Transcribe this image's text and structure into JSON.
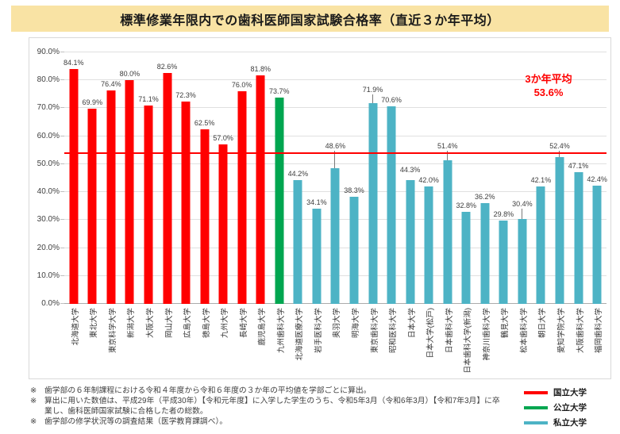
{
  "chart_data": {
    "type": "bar",
    "title": "標準修業年限内での歯科医師国家試験合格率（直近３か年平均）",
    "xlabel": "",
    "ylabel": "",
    "ylim": [
      0,
      90
    ],
    "ytick_step": 10,
    "ytick_labels": [
      "0.0%",
      "10.0%",
      "20.0%",
      "30.0%",
      "40.0%",
      "50.0%",
      "60.0%",
      "70.0%",
      "80.0%",
      "90.0%"
    ],
    "grid": "horizontal",
    "legend_position": "bottom-right",
    "average_line": {
      "value": 53.6,
      "label_line1": "3か年平均",
      "label_line2": "53.6%",
      "color": "#FF0000"
    },
    "legend": [
      {
        "key": "national",
        "label": "国立大学",
        "color": "#FF0000"
      },
      {
        "key": "public",
        "label": "公立大学",
        "color": "#00A650"
      },
      {
        "key": "private",
        "label": "私立大学",
        "color": "#4DB3C5"
      }
    ],
    "bars": [
      {
        "label": "北海道大学",
        "value": 84.1,
        "group": "national"
      },
      {
        "label": "東北大学",
        "value": 69.9,
        "group": "national"
      },
      {
        "label": "東京科学大学",
        "value": 76.4,
        "group": "national"
      },
      {
        "label": "新潟大学",
        "value": 80.0,
        "group": "national"
      },
      {
        "label": "大阪大学",
        "value": 71.1,
        "group": "national"
      },
      {
        "label": "岡山大学",
        "value": 82.6,
        "group": "national"
      },
      {
        "label": "広島大学",
        "value": 72.3,
        "group": "national"
      },
      {
        "label": "徳島大学",
        "value": 62.5,
        "group": "national"
      },
      {
        "label": "九州大学",
        "value": 57.0,
        "group": "national"
      },
      {
        "label": "長崎大学",
        "value": 76.0,
        "group": "national"
      },
      {
        "label": "鹿児島大学",
        "value": 81.8,
        "group": "national"
      },
      {
        "label": "九州歯科大学",
        "value": 73.7,
        "group": "public"
      },
      {
        "label": "北海道医療大学",
        "value": 44.2,
        "group": "private"
      },
      {
        "label": "岩手医科大学",
        "value": 34.1,
        "group": "private"
      },
      {
        "label": "奥羽大学",
        "value": 48.6,
        "group": "private"
      },
      {
        "label": "明海大学",
        "value": 38.3,
        "group": "private"
      },
      {
        "label": "東京歯科大学",
        "value": 71.9,
        "group": "private"
      },
      {
        "label": "昭和医科大学",
        "value": 70.6,
        "group": "private"
      },
      {
        "label": "日本大学",
        "value": 44.3,
        "group": "private"
      },
      {
        "label": "日本大学(松戸)",
        "value": 42.0,
        "group": "private"
      },
      {
        "label": "日本歯科大学",
        "value": 51.4,
        "group": "private"
      },
      {
        "label": "日本歯科大学(新潟)",
        "value": 32.8,
        "group": "private"
      },
      {
        "label": "神奈川歯科大学",
        "value": 36.2,
        "group": "private"
      },
      {
        "label": "鶴見大学",
        "value": 29.8,
        "group": "private"
      },
      {
        "label": "松本歯科大学",
        "value": 30.4,
        "group": "private"
      },
      {
        "label": "朝日大学",
        "value": 42.1,
        "group": "private"
      },
      {
        "label": "愛知学院大学",
        "value": 52.4,
        "group": "private"
      },
      {
        "label": "大阪歯科大学",
        "value": 47.1,
        "group": "private"
      },
      {
        "label": "福岡歯科大学",
        "value": 42.4,
        "group": "private"
      }
    ]
  },
  "footnotes": [
    {
      "marker": "※",
      "text": "歯学部の６年制課程における令和４年度から令和６年度の３か年の平均値を学部ごとに算出。"
    },
    {
      "marker": "※",
      "text": "算出に用いた数値は、平成29年（平成30年）【令和元年度】に入学した学生のうち、令和5年3月（令和6年3月）【令和7年3月】に卒業し、歯科医師国家試験に合格した者の総数。"
    },
    {
      "marker": "※",
      "text": "歯学部の修学状況等の調査結果（医学教育課調べ）。"
    }
  ]
}
